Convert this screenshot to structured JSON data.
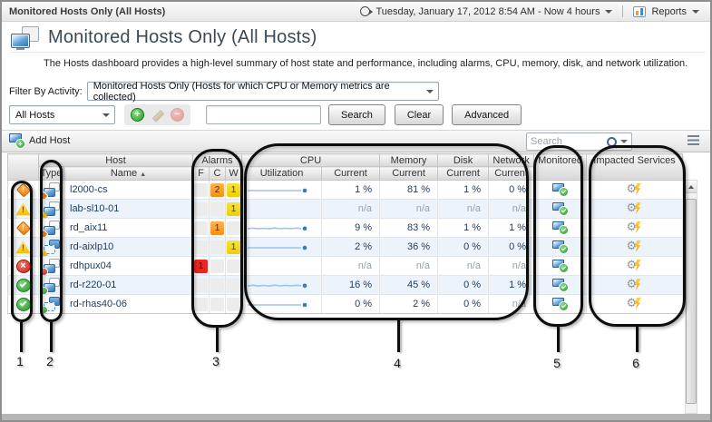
{
  "breadcrumb_bar": {
    "breadcrumb": "Monitored Hosts Only (All Hosts)",
    "time_range": "Tuesday, January 17, 2012 8:54 AM - Now 4 hours",
    "reports": "Reports"
  },
  "header": {
    "title": "Monitored Hosts Only (All Hosts)",
    "description": "The Hosts dashboard provides a high-level summary of host state and performance, including alarms, CPU, memory, disk, and network utilization."
  },
  "filter_row": {
    "label": "Filter By Activity:",
    "selected": "Monitored Hosts Only (Hosts for which CPU or Memory metrics are collected)"
  },
  "toolbar": {
    "scope_selected": "All Hosts",
    "filter_input_value": "",
    "search": "Search",
    "clear": "Clear",
    "advanced": "Advanced"
  },
  "table_bar": {
    "add_host": "Add Host",
    "search_placeholder": "Search"
  },
  "table": {
    "group_headers": {
      "host": "Host",
      "alarms": "Alarms",
      "cpu": "CPU",
      "memory": "Memory",
      "disk": "Disk",
      "network": "Network",
      "monitored": "Monitored",
      "impacted_services": "Impacted Services"
    },
    "sub_headers": {
      "type": "Type",
      "name": "Name",
      "fatal": "F",
      "critical": "C",
      "warning": "W",
      "utilization": "Utilization",
      "current": "Current"
    },
    "rows": [
      {
        "name": "l2000-cs",
        "status": "critical",
        "host_kind": "physical",
        "f": "",
        "c": "2",
        "w": "1",
        "spark": "flat",
        "cpu": "1 %",
        "memory": "81 %",
        "disk": "1 %",
        "network": "0 %"
      },
      {
        "name": "lab-sl10-01",
        "status": "warning",
        "host_kind": "physical",
        "f": "",
        "c": "",
        "w": "1",
        "spark": "none",
        "cpu": "n/a",
        "memory": "n/a",
        "disk": "n/a",
        "network": "n/a"
      },
      {
        "name": "rd_aix11",
        "status": "critical",
        "host_kind": "physical",
        "f": "",
        "c": "1",
        "w": "",
        "spark": "wavy",
        "cpu": "9 %",
        "memory": "83 %",
        "disk": "1 %",
        "network": "1 %"
      },
      {
        "name": "rd-aixlp10",
        "status": "warning",
        "host_kind": "virtual",
        "f": "",
        "c": "",
        "w": "1",
        "spark": "flat",
        "cpu": "2 %",
        "memory": "36 %",
        "disk": "0 %",
        "network": "0 %"
      },
      {
        "name": "rdhpux04",
        "status": "fatal",
        "host_kind": "physical",
        "f": "1",
        "c": "",
        "w": "",
        "spark": "none",
        "cpu": "n/a",
        "memory": "n/a",
        "disk": "n/a",
        "network": "n/a"
      },
      {
        "name": "rd-r220-01",
        "status": "normal",
        "host_kind": "physical",
        "f": "",
        "c": "",
        "w": "",
        "spark": "wavy",
        "cpu": "16 %",
        "memory": "45 %",
        "disk": "0 %",
        "network": "1 %"
      },
      {
        "name": "rd-rhas40-06",
        "status": "normal",
        "host_kind": "virtual",
        "f": "",
        "c": "",
        "w": "",
        "spark": "flat",
        "cpu": "0 %",
        "memory": "2 %",
        "disk": "0 %",
        "network": "n/a"
      }
    ]
  },
  "status_colors": {
    "fatal": "#d32f23",
    "critical": "#f58220",
    "warning": "#f2d100",
    "normal": "#2c9a2c"
  },
  "callouts": {
    "labels": [
      "1",
      "2",
      "3",
      "4",
      "5",
      "6"
    ]
  }
}
